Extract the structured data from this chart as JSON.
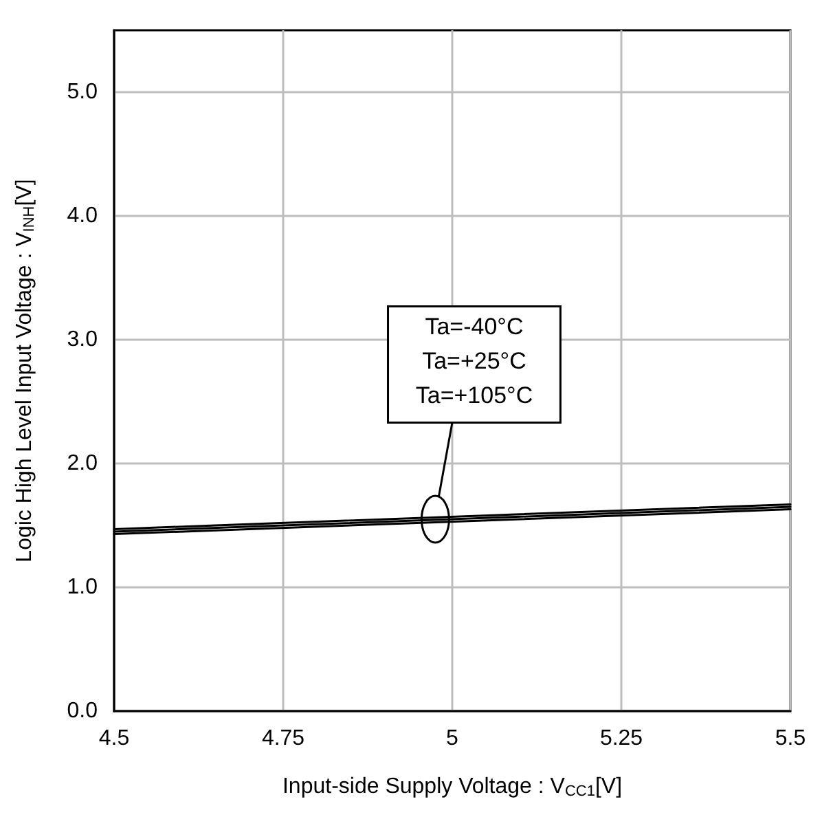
{
  "chart_data": {
    "type": "line",
    "xlabel": "Input-side Supply Voltage : V$_{CC1}$[V]",
    "ylabel": "Logic High Level Input Voltage : V$_{INH}$[V]",
    "x": [
      4.5,
      5.5
    ],
    "series": [
      {
        "color": "#000000",
        "values": [
          1.47,
          1.67
        ]
      },
      {
        "color": "#000000",
        "values": [
          1.45,
          1.65
        ]
      },
      {
        "color": "#000000",
        "values": [
          1.43,
          1.63
        ]
      }
    ],
    "xlim": [
      4.5,
      5.5
    ],
    "xticks": [
      4.5,
      4.75,
      5,
      5.25,
      5.5
    ],
    "ylim": [
      0,
      5.5
    ],
    "yticks": [
      {
        "value": 0,
        "label": "0.0"
      },
      {
        "value": 1,
        "label": "1.0"
      },
      {
        "value": 2,
        "label": "2.0"
      },
      {
        "value": 3,
        "label": "3.0"
      },
      {
        "value": 4,
        "label": "4.0"
      },
      {
        "value": 5,
        "label": "5.0"
      }
    ],
    "annotations": [
      "Ta=-40°C",
      "Ta=+25°C",
      "Ta=+105°C"
    ],
    "grid": true,
    "marker": "none",
    "line_style": "solid"
  }
}
